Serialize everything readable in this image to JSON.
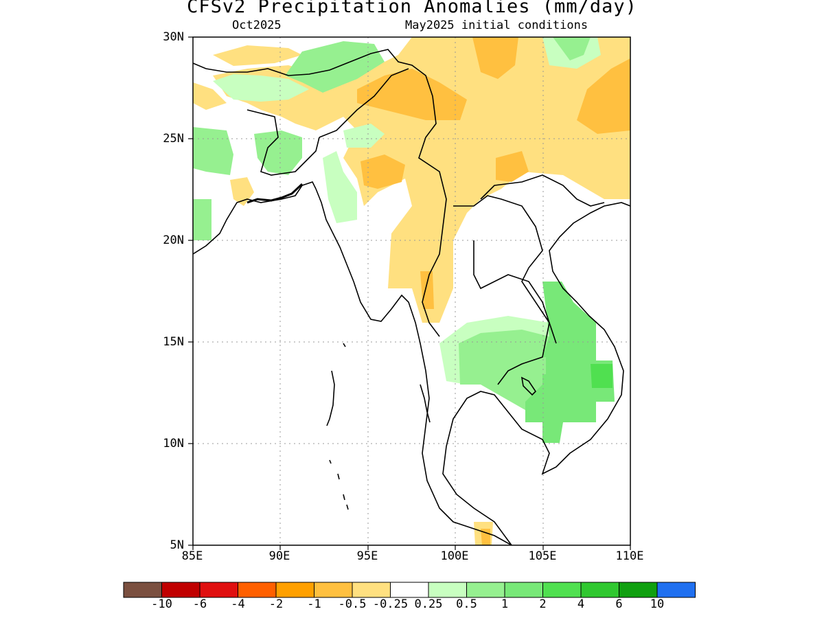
{
  "title": "CFSv2 Precipitation Anomalies (mm/day)",
  "subtitle_left": "Oct2025",
  "subtitle_right": "May2025 initial conditions",
  "lat_labels": [
    "30N",
    "25N",
    "20N",
    "15N",
    "10N",
    "5N"
  ],
  "lon_labels": [
    "85E",
    "90E",
    "95E",
    "100E",
    "105E",
    "110E"
  ],
  "colorbar": {
    "colors": [
      "#7b5040",
      "#c00000",
      "#e01010",
      "#ff6000",
      "#ffa000",
      "#ffc040",
      "#ffe080",
      "#ffffff",
      "#c8ffc0",
      "#96f090",
      "#78e878",
      "#50e050",
      "#30c830",
      "#10a010",
      "#2070f0"
    ],
    "labels": [
      "-10",
      "-6",
      "-4",
      "-2",
      "-1",
      "-0.5",
      "-0.25",
      "0.25",
      "0.5",
      "1",
      "2",
      "4",
      "6",
      "10"
    ]
  },
  "colors": {
    "dry_light": "#ffe080",
    "dry_mid": "#ffc040",
    "wet_pale": "#c8ffc0",
    "wet_light": "#96f090",
    "wet_mid": "#78e878",
    "wet_strong": "#50e050"
  }
}
